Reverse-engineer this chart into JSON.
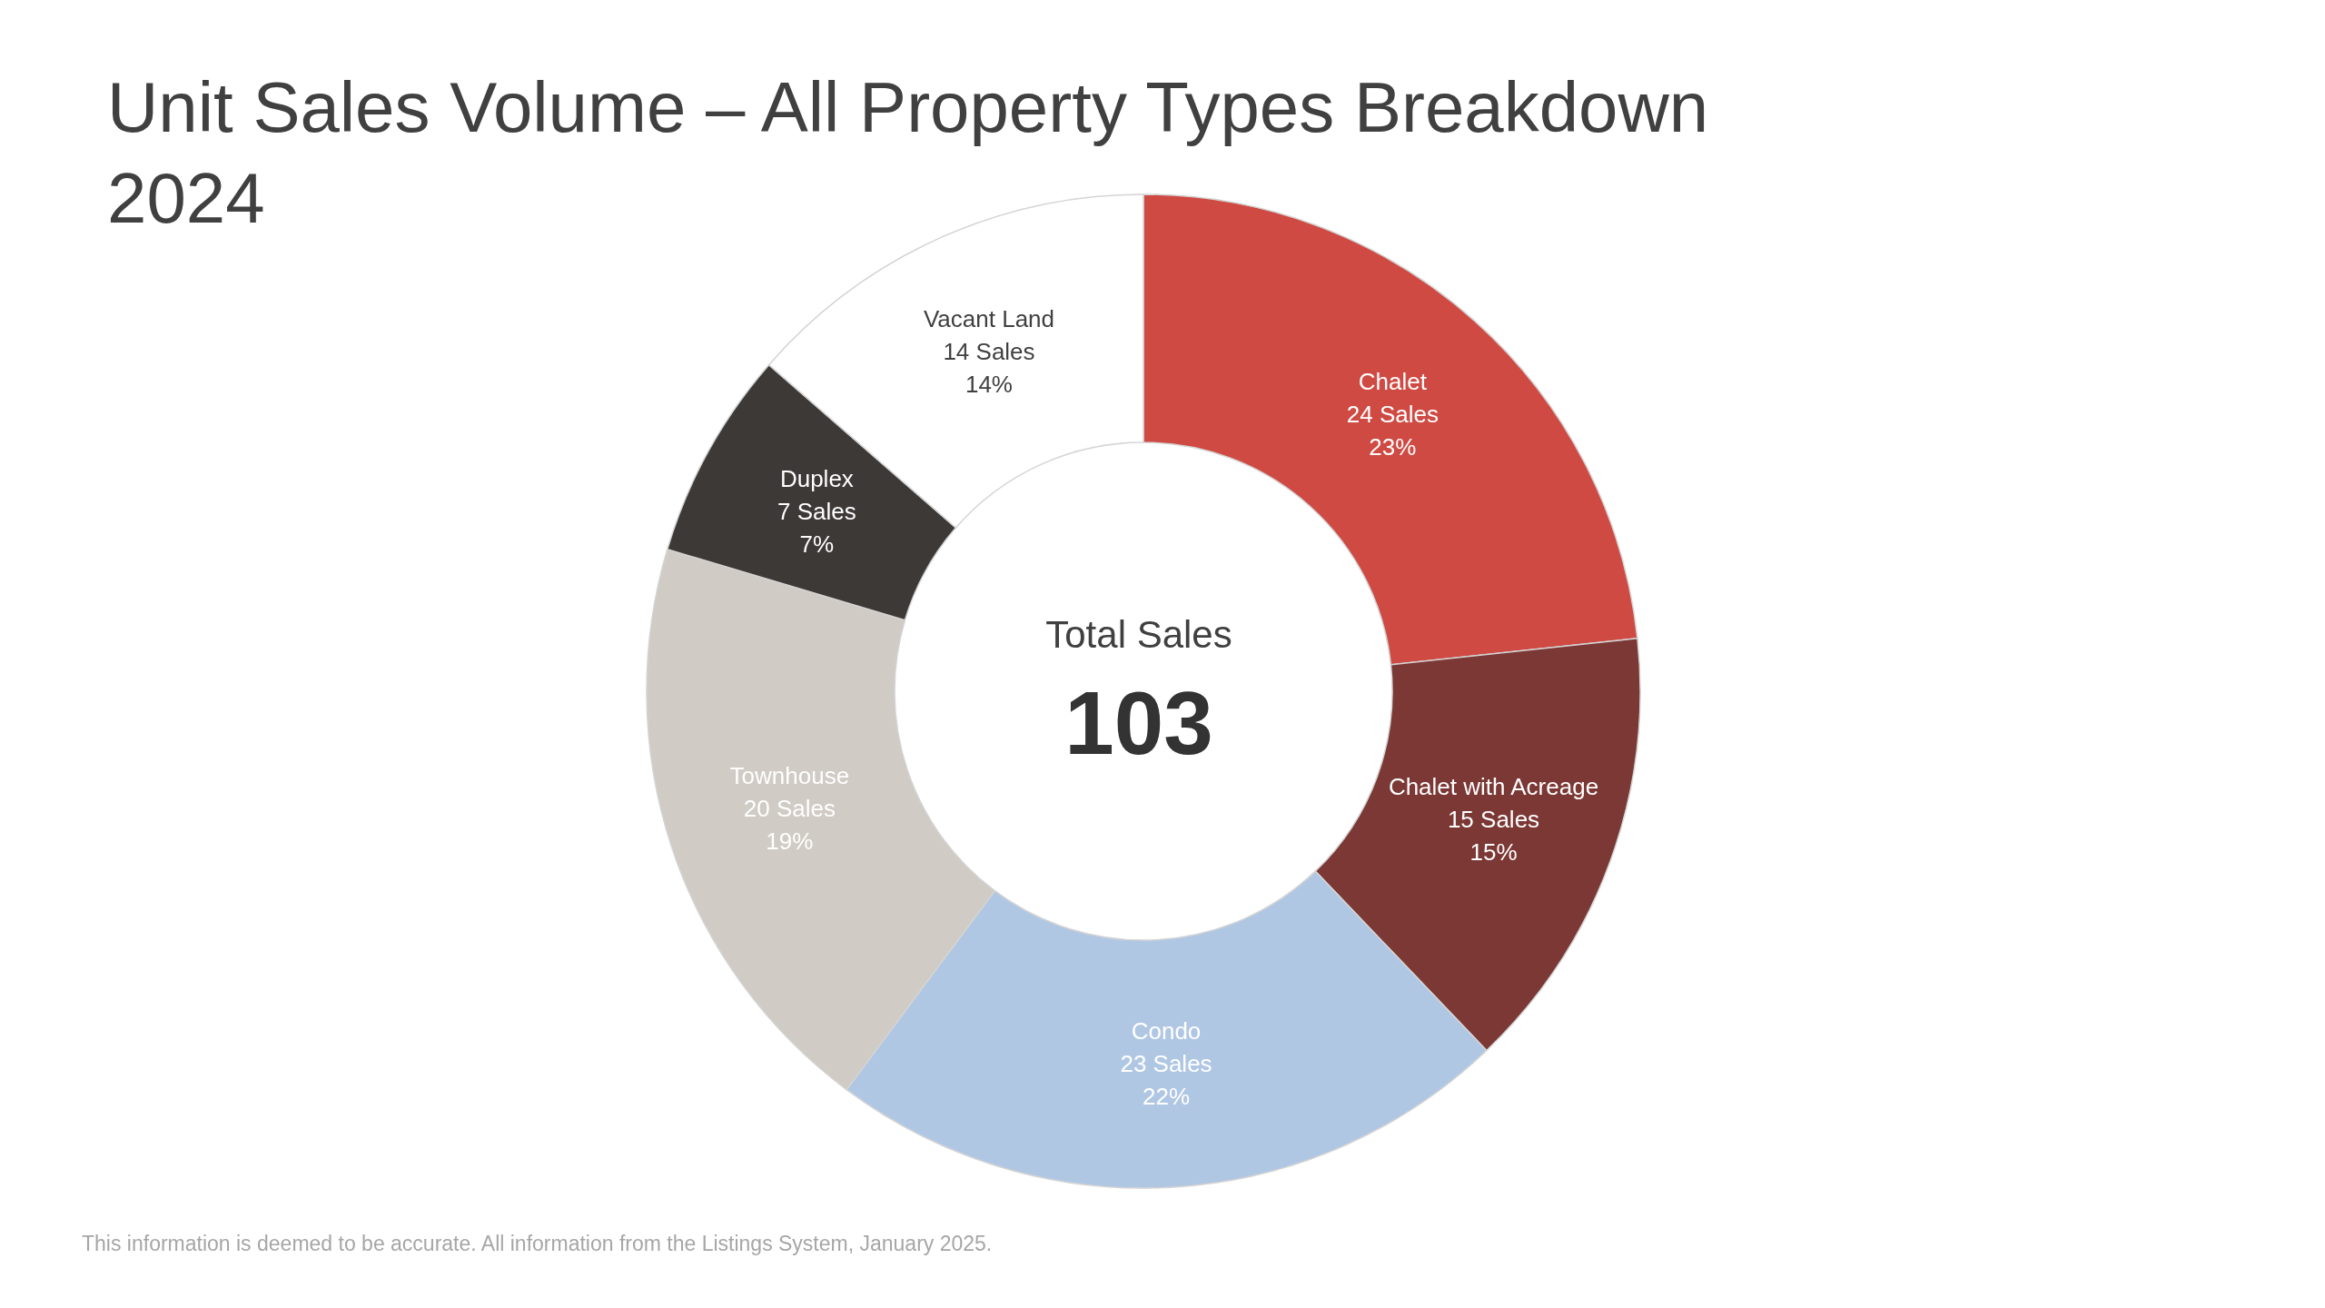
{
  "chart_data": {
    "type": "donut",
    "title": "Unit Sales Volume – All Property Types Breakdown 2024",
    "categories": [
      "Chalet",
      "Chalet with Acreage",
      "Condo",
      "Townhouse",
      "Duplex",
      "Vacant Land"
    ],
    "values": [
      24,
      15,
      23,
      20,
      7,
      14
    ],
    "colors": [
      "#cf4a43",
      "#7b3835",
      "#b0c7e4",
      "#d0cbc4",
      "#3d3937",
      "#ffffff"
    ],
    "value_labels": [
      "24 Sales\n23%",
      "15 Sales\n15%",
      "23 Sales\n22%",
      "20 Sales\n19%",
      "7 Sales\n7%",
      "14 Sales\n14%"
    ],
    "annotations": [
      "Total Sales",
      "103",
      "This information is deemed to be accurate. All information from the Listings System, January 2025."
    ]
  }
}
